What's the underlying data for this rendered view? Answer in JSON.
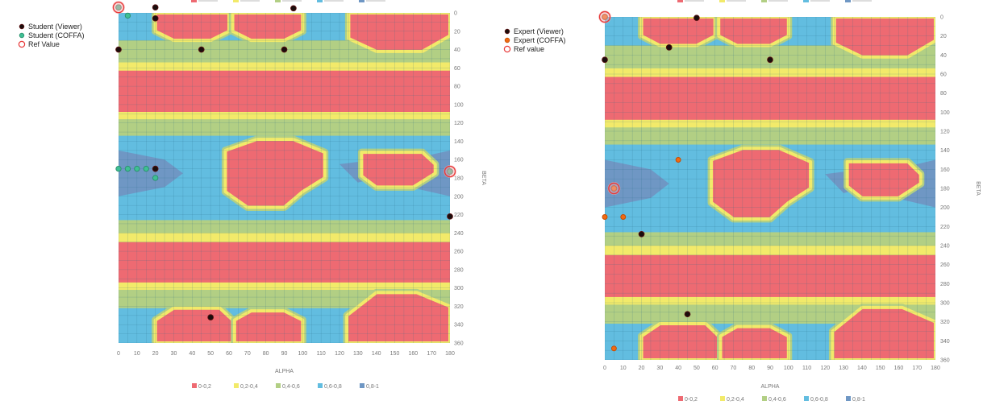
{
  "colors": {
    "band_0_0.2": "#ee6a72",
    "band_0.2_0.4": "#f2ea6a",
    "band_0.4_0.6": "#b2cf84",
    "band_0.6_0.8": "#62bde0",
    "band_0.8_1": "#6f97c4",
    "grid": "#2b6c8a",
    "viewer": "#1a0d0d",
    "coffa_student": "#3fbf94",
    "coffa_expert": "#f06a12",
    "ref": "#e83a3a"
  },
  "chart_data": [
    {
      "type": "heatmap",
      "xlabel": "ALPHA",
      "ylabel": "BETA",
      "xlim": [
        0,
        180
      ],
      "ylim": [
        0,
        360
      ],
      "y_direction": "top-to-bottom",
      "x_ticks": [
        "0",
        "10",
        "20",
        "30",
        "40",
        "50",
        "60",
        "70",
        "80",
        "90",
        "100",
        "110",
        "120",
        "130",
        "140",
        "150",
        "160",
        "170",
        "180"
      ],
      "y_ticks": [
        "0",
        "20",
        "40",
        "60",
        "80",
        "100",
        "120",
        "140",
        "160",
        "180",
        "200",
        "220",
        "240",
        "260",
        "280",
        "300",
        "320",
        "340",
        "360"
      ],
      "contour_bands": [
        "0-0,2",
        "0,2-0,4",
        "0,4-0,6",
        "0,6-0,8",
        "0,8-1"
      ],
      "series": [
        {
          "name": "Student (Viewer)",
          "points": [
            [
              0,
              -6
            ],
            [
              20,
              -6
            ],
            [
              20,
              6
            ],
            [
              95,
              -5
            ],
            [
              0,
              40
            ],
            [
              45,
              40
            ],
            [
              90,
              40
            ],
            [
              20,
              170
            ],
            [
              180,
              173
            ],
            [
              180,
              222
            ],
            [
              50,
              332
            ]
          ]
        },
        {
          "name": "Student (COFFA)",
          "points": [
            [
              0,
              -6
            ],
            [
              5,
              3
            ],
            [
              0,
              170
            ],
            [
              5,
              170
            ],
            [
              10,
              170
            ],
            [
              15,
              170
            ],
            [
              20,
              180
            ],
            [
              180,
              173
            ]
          ]
        },
        {
          "name": "Ref Value",
          "points": [
            [
              0,
              -6
            ],
            [
              180,
              173
            ]
          ]
        }
      ]
    },
    {
      "type": "heatmap",
      "xlabel": "ALPHA",
      "ylabel": "BETA",
      "xlim": [
        0,
        180
      ],
      "ylim": [
        0,
        360
      ],
      "y_direction": "top-to-bottom",
      "x_ticks": [
        "0",
        "10",
        "20",
        "30",
        "40",
        "50",
        "60",
        "70",
        "80",
        "90",
        "100",
        "110",
        "120",
        "130",
        "140",
        "150",
        "160",
        "170",
        "180"
      ],
      "y_ticks": [
        "0",
        "20",
        "40",
        "60",
        "80",
        "100",
        "120",
        "140",
        "160",
        "180",
        "200",
        "220",
        "240",
        "260",
        "280",
        "300",
        "320",
        "340",
        "360"
      ],
      "contour_bands": [
        "0-0,2",
        "0,2-0,4",
        "0,4-0,6",
        "0,6-0,8",
        "0,8-1"
      ],
      "series": [
        {
          "name": "Expert (Viewer)",
          "points": [
            [
              0,
              0
            ],
            [
              50,
              1
            ],
            [
              35,
              32
            ],
            [
              90,
              45
            ],
            [
              0,
              45
            ],
            [
              5,
              180
            ],
            [
              20,
              228
            ],
            [
              45,
              312
            ]
          ]
        },
        {
          "name": "Expert (COFFA)",
          "points": [
            [
              0,
              0
            ],
            [
              40,
              150
            ],
            [
              5,
              180
            ],
            [
              0,
              210
            ],
            [
              10,
              210
            ],
            [
              5,
              348
            ]
          ]
        },
        {
          "name": "Ref value",
          "points": [
            [
              0,
              0
            ],
            [
              5,
              180
            ]
          ]
        }
      ]
    }
  ]
}
